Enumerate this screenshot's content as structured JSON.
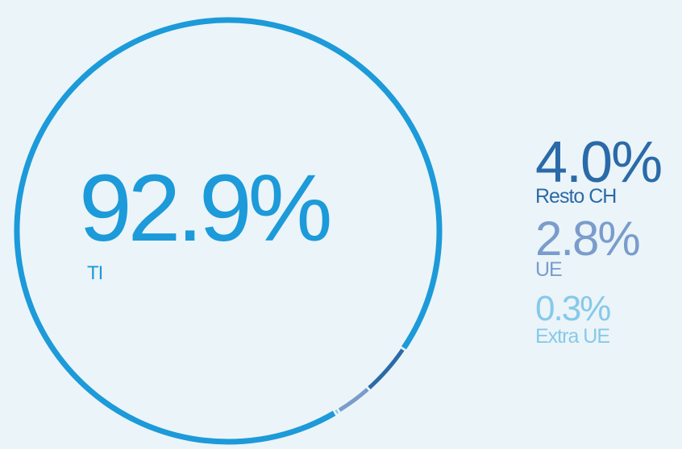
{
  "chart_data": {
    "type": "pie",
    "title": "",
    "slices": [
      {
        "label": "TI",
        "value": 92.9,
        "display": "92.9%",
        "color": "#1c9ad9"
      },
      {
        "label": "Resto CH",
        "value": 4.0,
        "display": "4.0%",
        "color": "#2a6aa8"
      },
      {
        "label": "UE",
        "value": 2.8,
        "display": "2.8%",
        "color": "#7a9ccc"
      },
      {
        "label": "Extra UE",
        "value": 0.3,
        "display": "0.3%",
        "color": "#86c9ea"
      }
    ]
  }
}
